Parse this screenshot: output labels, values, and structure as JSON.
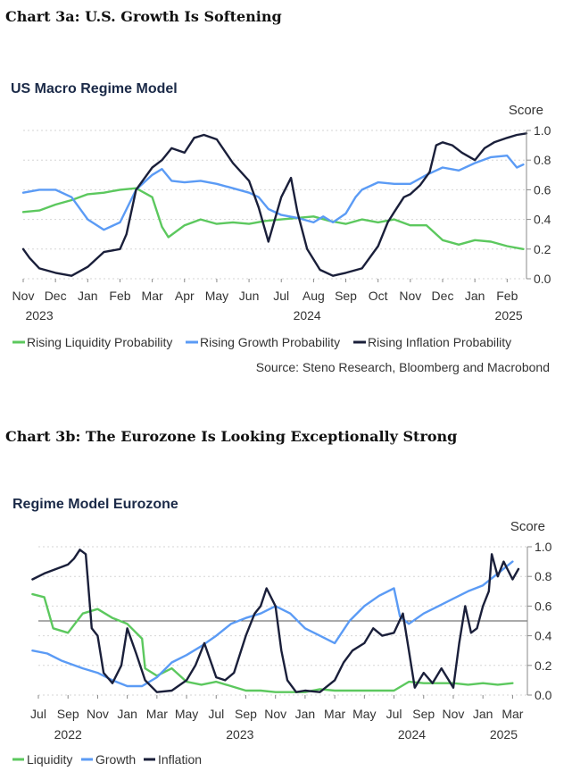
{
  "headings": {
    "chart_a": "Chart 3a: U.S. Growth Is Softening",
    "chart_b": "Chart 3b: The Eurozone Is Looking Exceptionally Strong"
  },
  "chart_data": [
    {
      "type": "line",
      "title": "US Macro Regime Model",
      "ylabel": "Score",
      "ylim": [
        0,
        1
      ],
      "yticks": [
        "0.0",
        "0.2",
        "0.4",
        "0.6",
        "0.8",
        "1.0"
      ],
      "xlim": [
        0,
        15.6
      ],
      "xticks": [
        "Nov",
        "Dec",
        "Jan",
        "Feb",
        "Mar",
        "Apr",
        "May",
        "Jun",
        "Jul",
        "Aug",
        "Sep",
        "Oct",
        "Nov",
        "Dec",
        "Jan",
        "Feb"
      ],
      "years": [
        {
          "label": "2023",
          "x": 0.5
        },
        {
          "label": "2024",
          "x": 8.8
        },
        {
          "label": "2025",
          "x": 15.05
        }
      ],
      "grid": true,
      "legend_position": "bottom",
      "source": "Source: Steno Research, Bloomberg and Macrobond",
      "series": [
        {
          "name": "Rising Liquidity Probability",
          "color": "#5cc85e",
          "points": [
            [
              0,
              0.45
            ],
            [
              0.5,
              0.46
            ],
            [
              1,
              0.5
            ],
            [
              1.5,
              0.53
            ],
            [
              2,
              0.57
            ],
            [
              2.5,
              0.58
            ],
            [
              3,
              0.6
            ],
            [
              3.5,
              0.61
            ],
            [
              4,
              0.55
            ],
            [
              4.3,
              0.35
            ],
            [
              4.5,
              0.28
            ],
            [
              5,
              0.36
            ],
            [
              5.5,
              0.4
            ],
            [
              6,
              0.37
            ],
            [
              6.5,
              0.38
            ],
            [
              7,
              0.37
            ],
            [
              7.5,
              0.39
            ],
            [
              8,
              0.4
            ],
            [
              8.5,
              0.41
            ],
            [
              9,
              0.42
            ],
            [
              9.5,
              0.39
            ],
            [
              10,
              0.37
            ],
            [
              10.5,
              0.4
            ],
            [
              11,
              0.38
            ],
            [
              11.5,
              0.4
            ],
            [
              12,
              0.36
            ],
            [
              12.5,
              0.36
            ],
            [
              13,
              0.26
            ],
            [
              13.5,
              0.23
            ],
            [
              14,
              0.26
            ],
            [
              14.5,
              0.25
            ],
            [
              15,
              0.22
            ],
            [
              15.5,
              0.2
            ]
          ]
        },
        {
          "name": "Rising Growth Probability",
          "color": "#5b9bf5",
          "points": [
            [
              0,
              0.58
            ],
            [
              0.5,
              0.6
            ],
            [
              1,
              0.6
            ],
            [
              1.5,
              0.55
            ],
            [
              2,
              0.4
            ],
            [
              2.5,
              0.33
            ],
            [
              3,
              0.38
            ],
            [
              3.5,
              0.6
            ],
            [
              4,
              0.7
            ],
            [
              4.3,
              0.74
            ],
            [
              4.6,
              0.66
            ],
            [
              5,
              0.65
            ],
            [
              5.5,
              0.66
            ],
            [
              6,
              0.64
            ],
            [
              6.5,
              0.61
            ],
            [
              7,
              0.58
            ],
            [
              7.3,
              0.55
            ],
            [
              7.6,
              0.47
            ],
            [
              8,
              0.43
            ],
            [
              8.5,
              0.41
            ],
            [
              9,
              0.38
            ],
            [
              9.3,
              0.42
            ],
            [
              9.6,
              0.38
            ],
            [
              10,
              0.44
            ],
            [
              10.3,
              0.55
            ],
            [
              10.5,
              0.6
            ],
            [
              11,
              0.65
            ],
            [
              11.5,
              0.64
            ],
            [
              12,
              0.64
            ],
            [
              12.5,
              0.7
            ],
            [
              13,
              0.75
            ],
            [
              13.5,
              0.73
            ],
            [
              14,
              0.78
            ],
            [
              14.5,
              0.82
            ],
            [
              15,
              0.83
            ],
            [
              15.3,
              0.75
            ],
            [
              15.5,
              0.77
            ]
          ]
        },
        {
          "name": "Rising Inflation Probability",
          "color": "#1a1f3a",
          "points": [
            [
              0,
              0.2
            ],
            [
              0.2,
              0.14
            ],
            [
              0.5,
              0.07
            ],
            [
              1,
              0.04
            ],
            [
              1.5,
              0.02
            ],
            [
              2,
              0.08
            ],
            [
              2.2,
              0.12
            ],
            [
              2.5,
              0.18
            ],
            [
              3,
              0.2
            ],
            [
              3.2,
              0.3
            ],
            [
              3.5,
              0.6
            ],
            [
              4,
              0.75
            ],
            [
              4.3,
              0.8
            ],
            [
              4.6,
              0.88
            ],
            [
              5,
              0.85
            ],
            [
              5.3,
              0.95
            ],
            [
              5.6,
              0.97
            ],
            [
              6,
              0.94
            ],
            [
              6.5,
              0.78
            ],
            [
              7,
              0.66
            ],
            [
              7.3,
              0.48
            ],
            [
              7.6,
              0.25
            ],
            [
              8,
              0.55
            ],
            [
              8.3,
              0.68
            ],
            [
              8.5,
              0.45
            ],
            [
              8.8,
              0.2
            ],
            [
              9.2,
              0.06
            ],
            [
              9.6,
              0.02
            ],
            [
              10,
              0.04
            ],
            [
              10.5,
              0.07
            ],
            [
              11,
              0.22
            ],
            [
              11.3,
              0.38
            ],
            [
              11.5,
              0.45
            ],
            [
              11.8,
              0.55
            ],
            [
              12,
              0.57
            ],
            [
              12.3,
              0.63
            ],
            [
              12.6,
              0.72
            ],
            [
              12.8,
              0.9
            ],
            [
              13,
              0.92
            ],
            [
              13.3,
              0.9
            ],
            [
              13.6,
              0.85
            ],
            [
              14,
              0.8
            ],
            [
              14.3,
              0.88
            ],
            [
              14.6,
              0.92
            ],
            [
              15,
              0.95
            ],
            [
              15.3,
              0.97
            ],
            [
              15.6,
              0.98
            ]
          ]
        }
      ]
    },
    {
      "type": "line",
      "title": "Regime Model Eurozone",
      "ylabel": "Score",
      "ylim": [
        0,
        1
      ],
      "yticks": [
        "0.0",
        "0.2",
        "0.4",
        "0.6",
        "0.8",
        "1.0"
      ],
      "xlim": [
        0,
        16.5
      ],
      "xticks": [
        "Jul",
        "Sep",
        "Nov",
        "Jan",
        "Mar",
        "May",
        "Jul",
        "Sep",
        "Nov",
        "Jan",
        "Mar",
        "May",
        "Jul",
        "Sep",
        "Nov",
        "Jan",
        "Mar"
      ],
      "years": [
        {
          "label": "2022",
          "x": 1.0
        },
        {
          "label": "2023",
          "x": 6.8
        },
        {
          "label": "2024",
          "x": 12.6
        },
        {
          "label": "2025",
          "x": 15.7
        }
      ],
      "grid": true,
      "reference_line": 0.5,
      "legend_position": "bottom",
      "series": [
        {
          "name": "Liquidity",
          "color": "#5cc85e",
          "points": [
            [
              -0.2,
              0.68
            ],
            [
              0.2,
              0.66
            ],
            [
              0.5,
              0.45
            ],
            [
              1,
              0.42
            ],
            [
              1.5,
              0.55
            ],
            [
              2,
              0.58
            ],
            [
              2.5,
              0.52
            ],
            [
              3,
              0.48
            ],
            [
              3.5,
              0.38
            ],
            [
              3.6,
              0.18
            ],
            [
              4,
              0.13
            ],
            [
              4.5,
              0.18
            ],
            [
              5,
              0.09
            ],
            [
              5.5,
              0.07
            ],
            [
              6,
              0.09
            ],
            [
              6.5,
              0.06
            ],
            [
              7,
              0.03
            ],
            [
              7.5,
              0.03
            ],
            [
              8,
              0.02
            ],
            [
              9,
              0.02
            ],
            [
              9.5,
              0.04
            ],
            [
              10,
              0.03
            ],
            [
              10.5,
              0.03
            ],
            [
              11,
              0.03
            ],
            [
              11.5,
              0.03
            ],
            [
              12,
              0.03
            ],
            [
              12.5,
              0.09
            ],
            [
              13,
              0.08
            ],
            [
              14,
              0.08
            ],
            [
              14.5,
              0.07
            ],
            [
              15,
              0.08
            ],
            [
              15.5,
              0.07
            ],
            [
              16,
              0.08
            ]
          ]
        },
        {
          "name": "Growth",
          "color": "#5b9bf5",
          "points": [
            [
              -0.2,
              0.3
            ],
            [
              0.3,
              0.28
            ],
            [
              0.8,
              0.23
            ],
            [
              1.5,
              0.18
            ],
            [
              2,
              0.15
            ],
            [
              2.5,
              0.1
            ],
            [
              3,
              0.06
            ],
            [
              3.5,
              0.06
            ],
            [
              4,
              0.12
            ],
            [
              4.5,
              0.22
            ],
            [
              5,
              0.27
            ],
            [
              5.5,
              0.33
            ],
            [
              6,
              0.4
            ],
            [
              6.5,
              0.48
            ],
            [
              7,
              0.52
            ],
            [
              7.5,
              0.55
            ],
            [
              8,
              0.6
            ],
            [
              8.5,
              0.55
            ],
            [
              9,
              0.45
            ],
            [
              9.5,
              0.4
            ],
            [
              10,
              0.35
            ],
            [
              10.5,
              0.5
            ],
            [
              11,
              0.6
            ],
            [
              11.5,
              0.67
            ],
            [
              12,
              0.72
            ],
            [
              12.2,
              0.53
            ],
            [
              12.5,
              0.48
            ],
            [
              13,
              0.55
            ],
            [
              13.5,
              0.6
            ],
            [
              14,
              0.65
            ],
            [
              14.5,
              0.7
            ],
            [
              15,
              0.74
            ],
            [
              15.5,
              0.82
            ],
            [
              16,
              0.9
            ]
          ]
        },
        {
          "name": "Inflation",
          "color": "#1a1f3a",
          "points": [
            [
              -0.2,
              0.78
            ],
            [
              0.2,
              0.82
            ],
            [
              0.6,
              0.85
            ],
            [
              1,
              0.88
            ],
            [
              1.2,
              0.92
            ],
            [
              1.4,
              0.98
            ],
            [
              1.6,
              0.95
            ],
            [
              1.8,
              0.45
            ],
            [
              2,
              0.4
            ],
            [
              2.2,
              0.15
            ],
            [
              2.5,
              0.08
            ],
            [
              2.8,
              0.2
            ],
            [
              3,
              0.45
            ],
            [
              3.3,
              0.28
            ],
            [
              3.6,
              0.1
            ],
            [
              4,
              0.02
            ],
            [
              4.5,
              0.03
            ],
            [
              5,
              0.1
            ],
            [
              5.3,
              0.2
            ],
            [
              5.6,
              0.35
            ],
            [
              6,
              0.12
            ],
            [
              6.3,
              0.1
            ],
            [
              6.6,
              0.15
            ],
            [
              7,
              0.4
            ],
            [
              7.3,
              0.55
            ],
            [
              7.5,
              0.6
            ],
            [
              7.7,
              0.72
            ],
            [
              8,
              0.6
            ],
            [
              8.2,
              0.3
            ],
            [
              8.4,
              0.1
            ],
            [
              8.7,
              0.02
            ],
            [
              9,
              0.03
            ],
            [
              9.5,
              0.02
            ],
            [
              10,
              0.1
            ],
            [
              10.3,
              0.22
            ],
            [
              10.6,
              0.3
            ],
            [
              11,
              0.35
            ],
            [
              11.3,
              0.45
            ],
            [
              11.6,
              0.4
            ],
            [
              12,
              0.42
            ],
            [
              12.3,
              0.55
            ],
            [
              12.5,
              0.3
            ],
            [
              12.7,
              0.05
            ],
            [
              13,
              0.15
            ],
            [
              13.3,
              0.08
            ],
            [
              13.6,
              0.18
            ],
            [
              14,
              0.05
            ],
            [
              14.2,
              0.35
            ],
            [
              14.4,
              0.6
            ],
            [
              14.6,
              0.42
            ],
            [
              14.8,
              0.45
            ],
            [
              15,
              0.6
            ],
            [
              15.2,
              0.7
            ],
            [
              15.3,
              0.95
            ],
            [
              15.5,
              0.8
            ],
            [
              15.7,
              0.9
            ],
            [
              16,
              0.78
            ],
            [
              16.2,
              0.85
            ]
          ]
        }
      ]
    }
  ]
}
